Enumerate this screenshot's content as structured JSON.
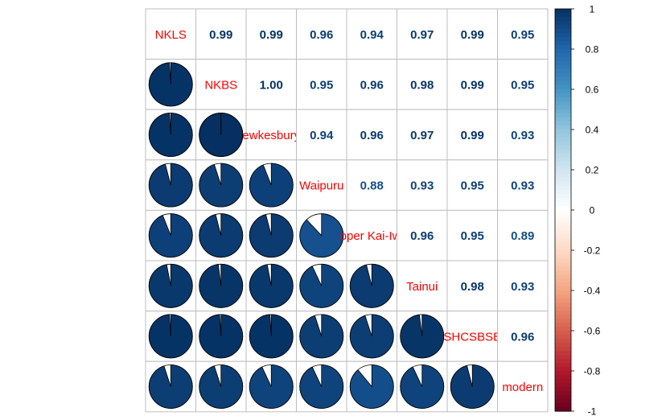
{
  "chart_data": {
    "type": "heatmap",
    "variables": [
      "NKLS",
      "NKBS",
      "Hawkesbury",
      "Waipuru",
      "Upper Kai-Iwi",
      "Tainui",
      "SHCSBSB",
      "modern"
    ],
    "variable_labels": [
      "NKLS",
      "NKBS",
      "ewkesbury",
      "Waipuru",
      "oper Kai-Iwi",
      "Tainui",
      "SHCSBSB",
      "modern"
    ],
    "matrix": [
      [
        1.0,
        0.99,
        0.99,
        0.96,
        0.94,
        0.97,
        0.99,
        0.95
      ],
      [
        0.99,
        1.0,
        1.0,
        0.95,
        0.96,
        0.98,
        0.99,
        0.95
      ],
      [
        0.99,
        1.0,
        1.0,
        0.94,
        0.96,
        0.97,
        0.99,
        0.93
      ],
      [
        0.96,
        0.95,
        0.94,
        1.0,
        0.88,
        0.93,
        0.95,
        0.93
      ],
      [
        0.94,
        0.96,
        0.96,
        0.88,
        1.0,
        0.96,
        0.95,
        0.89
      ],
      [
        0.97,
        0.98,
        0.97,
        0.93,
        0.96,
        1.0,
        0.98,
        0.93
      ],
      [
        0.99,
        0.99,
        0.99,
        0.95,
        0.95,
        0.98,
        1.0,
        0.96
      ],
      [
        0.95,
        0.95,
        0.93,
        0.93,
        0.89,
        0.93,
        0.96,
        1.0
      ]
    ],
    "coef_labels": [
      [
        "",
        "0.99",
        "0.99",
        "0.96",
        "0.94",
        "0.97",
        "0.99",
        "0.95"
      ],
      [
        "",
        "",
        "1.00",
        "0.95",
        "0.96",
        "0.98",
        "0.99",
        "0.95"
      ],
      [
        "",
        "",
        "",
        "0.94",
        "0.96",
        "0.97",
        "0.99",
        "0.93"
      ],
      [
        "",
        "",
        "",
        "",
        "0.88",
        "0.93",
        "0.95",
        "0.93"
      ],
      [
        "",
        "",
        "",
        "",
        "",
        "0.96",
        "0.95",
        "0.89"
      ],
      [
        "",
        "",
        "",
        "",
        "",
        "",
        "0.98",
        "0.93"
      ],
      [
        "",
        "",
        "",
        "",
        "",
        "",
        "",
        "0.96"
      ],
      [
        "",
        "",
        "",
        "",
        "",
        "",
        "",
        ""
      ]
    ],
    "lower_method": "pie",
    "upper_method": "number",
    "colorbar": {
      "range": [
        -1,
        1
      ],
      "ticks": [
        -1,
        -0.8,
        -0.6,
        -0.4,
        -0.2,
        0,
        0.2,
        0.4,
        0.6,
        0.8,
        1
      ],
      "tick_labels": [
        "-1",
        "-0.8",
        "-0.6",
        "-0.4",
        "-0.2",
        "0",
        "0.2",
        "0.4",
        "0.6",
        "0.8",
        "1"
      ],
      "palette": [
        "#67001f",
        "#b2182b",
        "#d6604d",
        "#f4a582",
        "#fddbc7",
        "#ffffff",
        "#d1e5f0",
        "#92c5de",
        "#4393c3",
        "#2166ac",
        "#053061"
      ]
    },
    "label_color": "#ff0000",
    "grid": true
  }
}
